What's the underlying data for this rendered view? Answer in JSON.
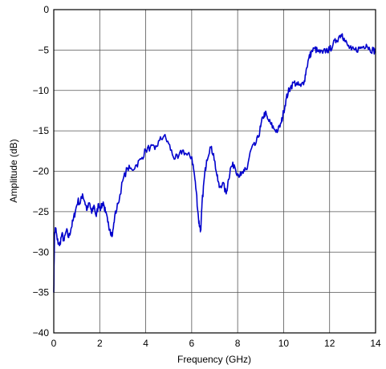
{
  "chart_data": {
    "type": "line",
    "title": "",
    "xlabel": "Frequency (GHz)",
    "ylabel": "Amplitude (dB)",
    "xlim": [
      0,
      14
    ],
    "ylim": [
      -40,
      0
    ],
    "xticks": [
      0,
      2,
      4,
      6,
      8,
      10,
      12,
      14
    ],
    "xtick_labels": [
      "0",
      "2",
      "4",
      "6",
      "8",
      "10",
      "12",
      "14"
    ],
    "yticks": [
      0,
      -5,
      -10,
      -15,
      -20,
      -25,
      -30,
      -35,
      -40
    ],
    "ytick_labels": [
      "0",
      "−5",
      "−10",
      "−15",
      "−20",
      "−25",
      "−30",
      "−35",
      "−40"
    ],
    "grid": true,
    "series": [
      {
        "color": "#0000cc",
        "x": [
          0.0,
          0.03,
          0.08,
          0.15,
          0.25,
          0.35,
          0.45,
          0.55,
          0.65,
          0.75,
          0.85,
          0.95,
          1.05,
          1.15,
          1.25,
          1.35,
          1.45,
          1.55,
          1.65,
          1.75,
          1.85,
          1.95,
          2.05,
          2.15,
          2.25,
          2.35,
          2.45,
          2.55,
          2.65,
          2.8,
          3.0,
          3.2,
          3.4,
          3.6,
          3.8,
          4.0,
          4.2,
          4.4,
          4.6,
          4.8,
          5.0,
          5.2,
          5.4,
          5.6,
          5.8,
          6.0,
          6.1,
          6.2,
          6.3,
          6.35,
          6.4,
          6.45,
          6.55,
          6.65,
          6.8,
          6.95,
          7.1,
          7.2,
          7.35,
          7.5,
          7.6,
          7.7,
          7.85,
          8.0,
          8.15,
          8.3,
          8.4,
          8.5,
          8.6,
          8.75,
          8.9,
          9.0,
          9.1,
          9.2,
          9.3,
          9.45,
          9.6,
          9.75,
          9.9,
          10.0,
          10.1,
          10.2,
          10.3,
          10.45,
          10.6,
          10.75,
          10.9,
          11.0,
          11.1,
          11.2,
          11.35,
          11.5,
          11.7,
          11.85,
          12.0,
          12.15,
          12.3,
          12.45,
          12.55,
          12.65,
          12.8,
          12.95,
          13.1,
          13.3,
          13.45,
          13.6,
          13.75,
          13.9,
          14.0
        ],
        "y": [
          -35.0,
          -28.0,
          -27.0,
          -28.5,
          -29.2,
          -27.8,
          -28.6,
          -27.3,
          -28.2,
          -27.1,
          -26.0,
          -24.8,
          -23.6,
          -24.0,
          -22.8,
          -23.8,
          -24.8,
          -23.9,
          -25.2,
          -24.2,
          -25.6,
          -24.0,
          -24.6,
          -23.8,
          -25.1,
          -26.3,
          -27.2,
          -28.0,
          -25.6,
          -24.0,
          -21.2,
          -19.6,
          -19.8,
          -19.2,
          -18.5,
          -17.4,
          -17.0,
          -17.3,
          -16.2,
          -15.6,
          -16.6,
          -18.2,
          -18.4,
          -17.4,
          -18.0,
          -18.2,
          -20.0,
          -22.5,
          -26.0,
          -26.8,
          -27.3,
          -24.0,
          -20.8,
          -18.6,
          -17.0,
          -17.8,
          -20.6,
          -22.0,
          -21.4,
          -22.8,
          -21.0,
          -19.5,
          -19.2,
          -20.3,
          -20.5,
          -20.0,
          -19.8,
          -18.3,
          -17.2,
          -16.8,
          -15.8,
          -14.5,
          -13.3,
          -12.8,
          -13.5,
          -14.2,
          -14.8,
          -15.0,
          -14.0,
          -12.6,
          -11.2,
          -10.2,
          -9.6,
          -9.0,
          -9.3,
          -9.5,
          -8.8,
          -7.2,
          -6.0,
          -5.3,
          -4.8,
          -5.2,
          -5.4,
          -5.0,
          -5.0,
          -4.3,
          -3.8,
          -3.2,
          -3.0,
          -3.8,
          -4.5,
          -5.0,
          -5.0,
          -4.8,
          -4.6,
          -4.3,
          -4.9,
          -5.0,
          -5.2
        ]
      }
    ]
  }
}
